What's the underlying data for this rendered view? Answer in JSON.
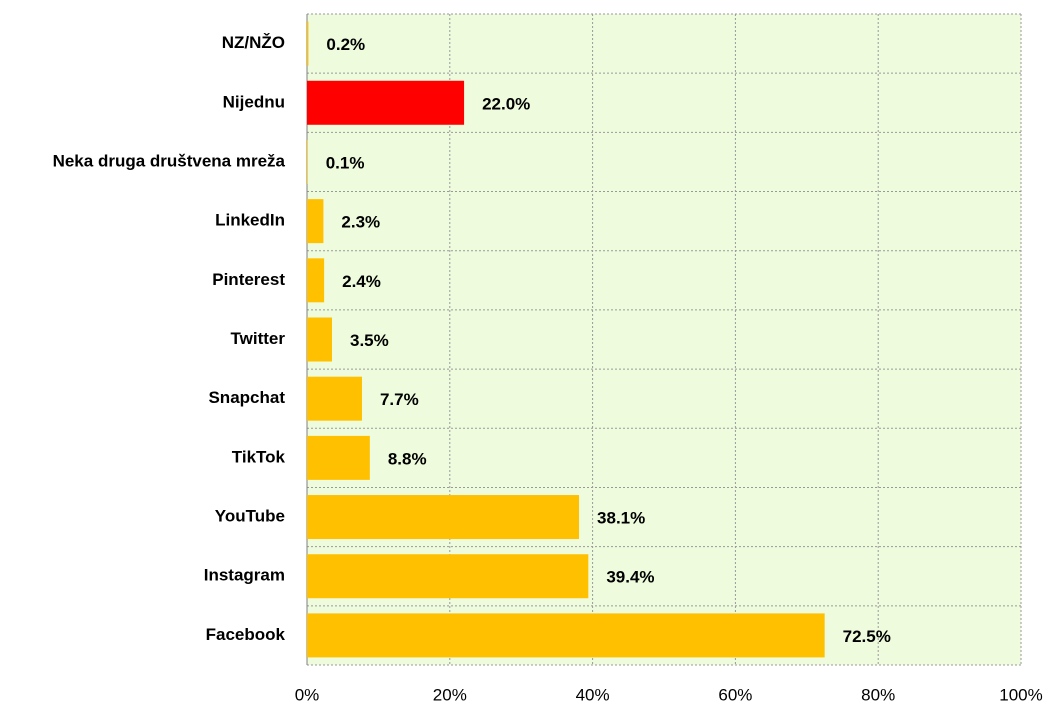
{
  "chart_data": {
    "type": "barh",
    "categories": [
      "NZ/NŽO",
      "Nijednu",
      "Neka druga društvena mreža",
      "LinkedIn",
      "Pinterest",
      "Twitter",
      "Snapchat",
      "TikTok",
      "YouTube",
      "Instagram",
      "Facebook"
    ],
    "values": [
      0.2,
      22.0,
      0.1,
      2.3,
      2.4,
      3.5,
      7.7,
      8.8,
      38.1,
      39.4,
      72.5
    ],
    "value_labels": [
      "0.2%",
      "22.0%",
      "0.1%",
      "2.3%",
      "2.4%",
      "3.5%",
      "7.7%",
      "8.8%",
      "38.1%",
      "39.4%",
      "72.5%"
    ],
    "colors": [
      "#ffc000",
      "#ff0000",
      "#ffc000",
      "#ffc000",
      "#ffc000",
      "#ffc000",
      "#ffc000",
      "#ffc000",
      "#ffc000",
      "#ffc000",
      "#ffc000"
    ],
    "xlim": [
      0,
      100
    ],
    "xticks": [
      {
        "value": 0,
        "label": "0%"
      },
      {
        "value": 20,
        "label": "20%"
      },
      {
        "value": 40,
        "label": "40%"
      },
      {
        "value": 60,
        "label": "60%"
      },
      {
        "value": 80,
        "label": "80%"
      },
      {
        "value": 100,
        "label": "100%"
      }
    ],
    "grid": true
  }
}
